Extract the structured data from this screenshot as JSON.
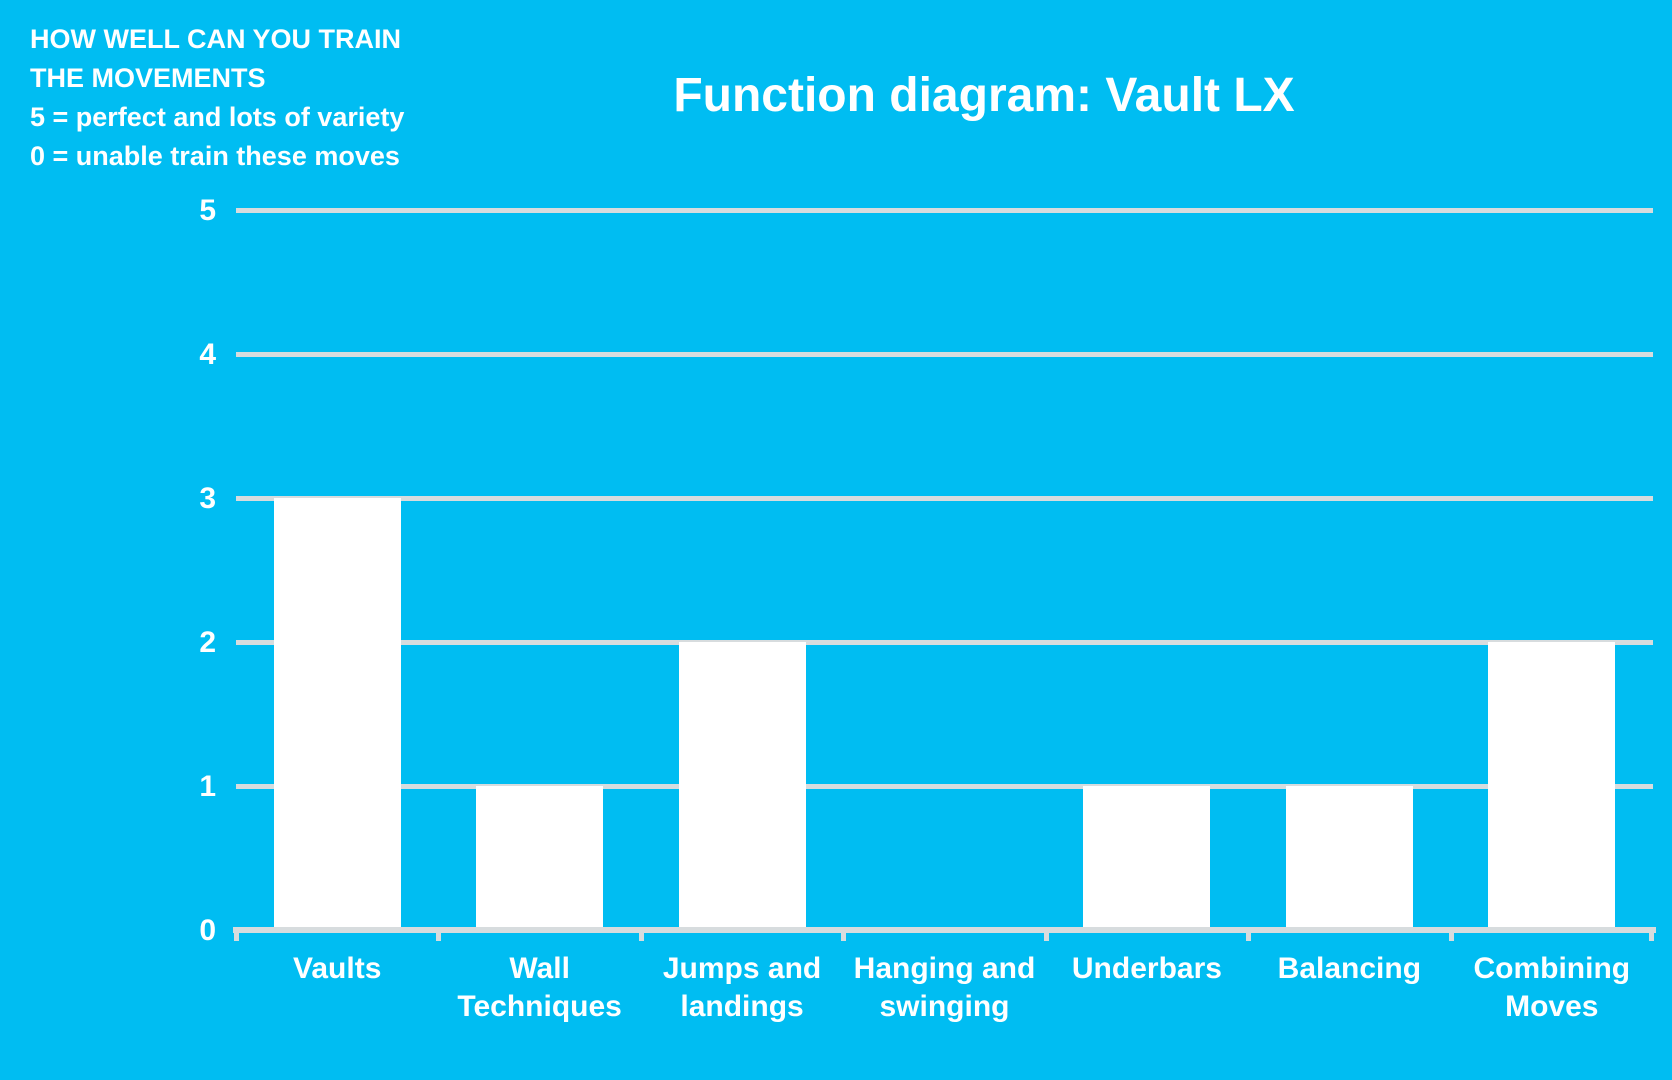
{
  "annotation": {
    "lines": [
      "HOW WELL CAN YOU TRAIN",
      "THE MOVEMENTS",
      "5 = perfect and lots of variety",
      "0 = unable train these moves"
    ]
  },
  "chart_data": {
    "type": "bar",
    "title": "Function diagram: Vault LX",
    "categories": [
      "Vaults",
      "Wall Techniques",
      "Jumps and landings",
      "Hanging and swinging",
      "Underbars",
      "Balancing",
      "Combining Moves"
    ],
    "values": [
      3,
      1,
      2,
      0,
      1,
      1,
      2
    ],
    "xlabel": "",
    "ylabel": "",
    "ylim": [
      0,
      5
    ],
    "yticks": [
      0,
      1,
      2,
      3,
      4,
      5
    ],
    "grid": true,
    "legend": false,
    "colors": {
      "background": "#00BDF2",
      "bar": "#FFFFFF",
      "gridline": "#D7DCDE",
      "text": "#FFFFFF"
    }
  }
}
